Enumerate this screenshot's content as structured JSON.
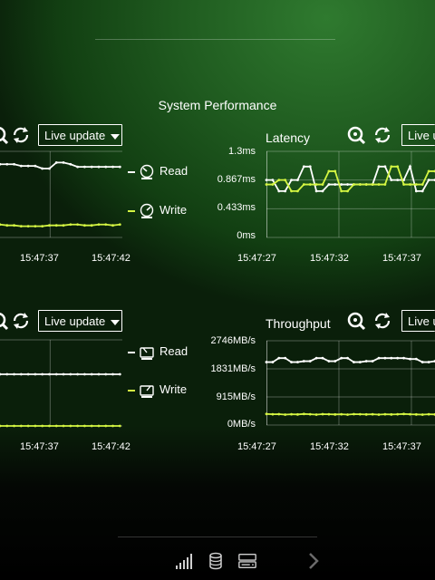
{
  "page_title": "System Performance",
  "live_update_label": "Live update",
  "legend": {
    "read": "Read",
    "write": "Write"
  },
  "colors": {
    "read": "#ffffff",
    "write": "#d4f542",
    "grid": "#ffffff"
  },
  "charts": {
    "top_left": {
      "times": [
        "15:47:37",
        "15:47:42"
      ]
    },
    "latency": {
      "title": "Latency",
      "y_ticks": [
        "1.3ms",
        "0.867ms",
        "0.433ms",
        "0ms"
      ],
      "times": [
        "15:47:27",
        "15:47:32",
        "15:47:37"
      ]
    },
    "bottom_left": {
      "times": [
        "15:47:37",
        "15:47:42"
      ]
    },
    "throughput": {
      "title": "Throughput",
      "y_ticks": [
        "2746MB/s",
        "1831MB/s",
        "915MB/s",
        "0MB/s"
      ],
      "times": [
        "15:47:27",
        "15:47:32",
        "15:47:37"
      ]
    }
  },
  "chart_data": [
    {
      "type": "line",
      "title": "",
      "x": [
        1,
        2,
        3,
        4,
        5,
        6,
        7,
        8,
        9,
        10,
        11,
        12,
        13,
        14,
        15,
        16,
        17,
        18
      ],
      "series": [
        {
          "name": "Read",
          "values": [
            85,
            85,
            85,
            83,
            83,
            83,
            80,
            80,
            87,
            87,
            85,
            82,
            82,
            82,
            82,
            82,
            82,
            82
          ]
        },
        {
          "name": "Write",
          "values": [
            15,
            14,
            14,
            13,
            13,
            13,
            13,
            14,
            14,
            14,
            15,
            15,
            14,
            14,
            15,
            15,
            14,
            15
          ]
        }
      ],
      "ylim": [
        0,
        100
      ]
    },
    {
      "type": "line",
      "title": "Latency",
      "x": [
        1,
        2,
        3,
        4,
        5,
        6,
        7,
        8,
        9,
        10,
        11,
        12,
        13,
        14,
        15,
        16,
        17,
        18,
        19,
        20,
        21,
        22,
        23,
        24,
        25,
        26,
        27,
        28
      ],
      "series": [
        {
          "name": "Read",
          "values": [
            0.867,
            0.867,
            0.7,
            0.7,
            0.867,
            0.867,
            1.07,
            1.07,
            0.7,
            0.7,
            0.8,
            0.8,
            0.8,
            0.8,
            0.8,
            0.8,
            0.8,
            0.8,
            1.07,
            1.07,
            0.867,
            0.867,
            0.867,
            1.07,
            0.7,
            0.7,
            0.867,
            0.867
          ]
        },
        {
          "name": "Write",
          "values": [
            0.8,
            0.8,
            0.867,
            0.867,
            0.7,
            0.7,
            0.8,
            0.8,
            0.8,
            0.8,
            1.0,
            1.0,
            0.7,
            0.7,
            0.8,
            0.8,
            0.8,
            0.8,
            0.8,
            0.8,
            1.07,
            1.07,
            0.8,
            0.8,
            0.8,
            0.8,
            1.0,
            1.0
          ]
        }
      ],
      "ylim": [
        0,
        1.3
      ]
    },
    {
      "type": "line",
      "title": "",
      "x": [
        1,
        2,
        3,
        4,
        5,
        6,
        7,
        8,
        9,
        10,
        11,
        12,
        13,
        14,
        15,
        16,
        17,
        18
      ],
      "series": [
        {
          "name": "Read",
          "values": [
            60,
            60,
            60,
            60,
            60,
            60,
            60,
            60,
            60,
            60,
            60,
            60,
            60,
            60,
            60,
            60,
            60,
            60
          ]
        },
        {
          "name": "Write",
          "values": [
            0,
            0,
            0,
            0,
            0,
            0,
            0,
            0,
            0,
            0,
            0,
            0,
            0,
            0,
            0,
            0,
            0,
            0
          ]
        }
      ],
      "ylim": [
        0,
        100
      ]
    },
    {
      "type": "line",
      "title": "Throughput",
      "x": [
        1,
        2,
        3,
        4,
        5,
        6,
        7,
        8,
        9,
        10,
        11,
        12,
        13,
        14,
        15,
        16,
        17,
        18,
        19,
        20,
        21,
        22,
        23,
        24,
        25,
        26,
        27,
        28
      ],
      "series": [
        {
          "name": "Read",
          "values": [
            2050,
            2050,
            2180,
            2180,
            2050,
            2050,
            2080,
            2080,
            2180,
            2180,
            2080,
            2080,
            2180,
            2180,
            2050,
            2050,
            2080,
            2080,
            2180,
            2180,
            2180,
            2180,
            2180,
            2150,
            2150,
            2050,
            2050,
            2080
          ]
        },
        {
          "name": "Write",
          "values": [
            360,
            350,
            355,
            340,
            350,
            345,
            360,
            350,
            340,
            355,
            350,
            345,
            350,
            340,
            355,
            350,
            345,
            350,
            340,
            350,
            345,
            350,
            360,
            350,
            345,
            340,
            350,
            345
          ]
        }
      ],
      "ylim": [
        0,
        2746
      ]
    }
  ]
}
